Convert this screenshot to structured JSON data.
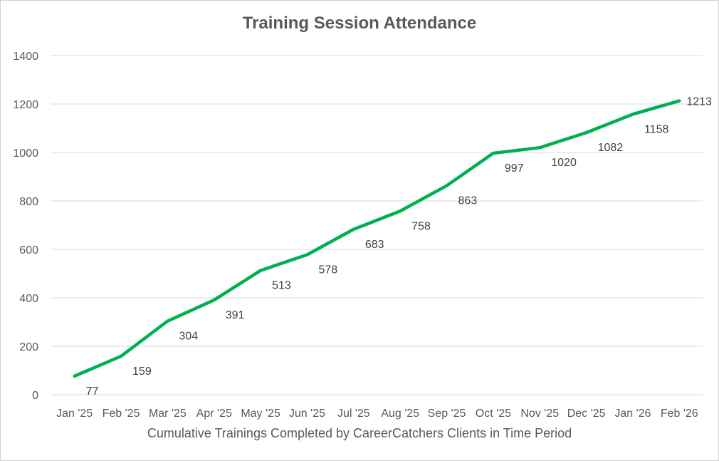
{
  "chart_data": {
    "type": "line",
    "title": "Training Session Attendance",
    "xlabel": "Cumulative Trainings Completed by CareerCatchers Clients in Time Period",
    "ylabel": "",
    "ylim": [
      0,
      1400
    ],
    "yticks": [
      0,
      200,
      400,
      600,
      800,
      1000,
      1200,
      1400
    ],
    "categories": [
      "Jan '25",
      "Feb '25",
      "Mar '25",
      "Apr '25",
      "May '25",
      "Jun '25",
      "Jul '25",
      "Aug '25",
      "Sep '25",
      "Oct '25",
      "Nov '25",
      "Dec '25",
      "Jan '26",
      "Feb '26"
    ],
    "series": [
      {
        "values": [
          77,
          159,
          304,
          391,
          513,
          578,
          683,
          758,
          863,
          997,
          1020,
          1082,
          1158,
          1213
        ]
      }
    ],
    "grid": true,
    "data_labels": true,
    "line_color": "#00b050",
    "grid_color": "#d9d9d9",
    "text_color": "#595959"
  }
}
